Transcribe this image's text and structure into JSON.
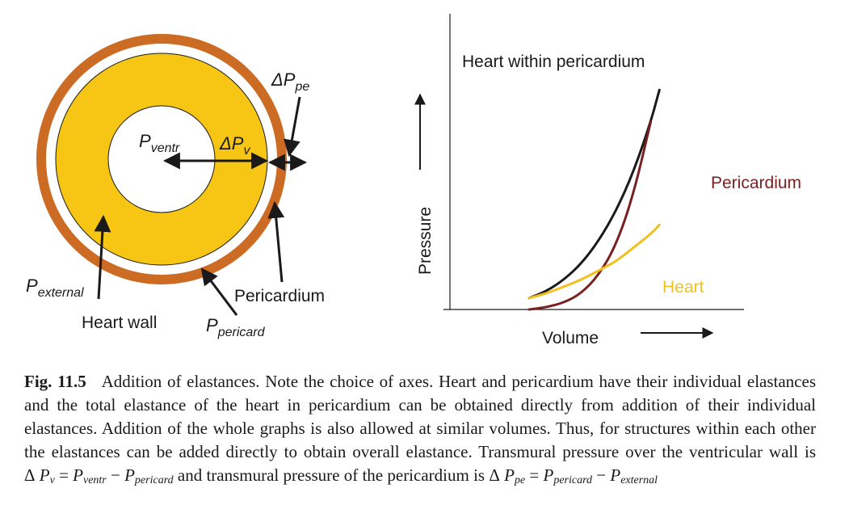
{
  "diagram": {
    "colors": {
      "pericardium_ring": "#cc6b24",
      "heart_wall": "#f7c514",
      "outline": "#1a1a1a"
    },
    "labels": {
      "p_ventr": {
        "main": "P",
        "sub": "ventr"
      },
      "delta_pv": {
        "main": "ΔP",
        "sub": "v"
      },
      "delta_ppe": {
        "main": "ΔP",
        "sub": "pe"
      },
      "p_external": {
        "main": "P",
        "sub": "external"
      },
      "heart_wall": "Heart wall",
      "pericardium": "Pericardium",
      "p_pericard": {
        "main": "P",
        "sub": "pericard"
      }
    }
  },
  "chart_data": {
    "type": "line",
    "title": "Heart within pericardium",
    "xlabel": "Volume",
    "ylabel": "Pressure",
    "x_range": [
      0,
      1
    ],
    "y_range": [
      0,
      1
    ],
    "series": [
      {
        "name": "Heart within pericardium",
        "color": "#1a1a1a",
        "points": [
          [
            0.0,
            0.05
          ],
          [
            0.1,
            0.08
          ],
          [
            0.2,
            0.13
          ],
          [
            0.3,
            0.2
          ],
          [
            0.4,
            0.3
          ],
          [
            0.5,
            0.43
          ],
          [
            0.6,
            0.6
          ],
          [
            0.7,
            0.82
          ],
          [
            0.75,
            0.96
          ]
        ]
      },
      {
        "name": "Pericardium",
        "color": "#7a1f1f",
        "points": [
          [
            0.0,
            0.0
          ],
          [
            0.1,
            0.01
          ],
          [
            0.2,
            0.03
          ],
          [
            0.3,
            0.07
          ],
          [
            0.4,
            0.15
          ],
          [
            0.5,
            0.28
          ],
          [
            0.6,
            0.5
          ],
          [
            0.7,
            0.82
          ]
        ]
      },
      {
        "name": "Heart",
        "color": "#f2c01f",
        "points": [
          [
            0.0,
            0.05
          ],
          [
            0.1,
            0.07
          ],
          [
            0.2,
            0.1
          ],
          [
            0.3,
            0.13
          ],
          [
            0.4,
            0.17
          ],
          [
            0.5,
            0.21
          ],
          [
            0.6,
            0.27
          ],
          [
            0.7,
            0.33
          ],
          [
            0.75,
            0.37
          ]
        ]
      }
    ],
    "legend_labels": {
      "pericardium": "Pericardium",
      "heart": "Heart"
    }
  },
  "caption": {
    "fig_label": "Fig. 11.5",
    "text": "Addition of elastances. Note the choice of axes. Heart and pericardium have their individual elastances and the total elastance of the heart in pericardium can be obtained directly from addition of their individual elastances. Addition of the whole graphs is also allowed at similar volumes. Thus, for structures within each other the elastances can be added directly to obtain overall elastance. Transmural pressure over the ventricular wall is",
    "eq1": {
      "lhs": "Δ",
      "lhs_var": "P",
      "lhs_sub": "v",
      "eq": "=",
      "a": "P",
      "a_sub": "ventr",
      "op": "−",
      "b": "P",
      "b_sub": "pericard"
    },
    "middle": "and transmural pressure of the pericardium is",
    "eq2": {
      "lhs": "Δ",
      "lhs_var": "P",
      "lhs_sub": "pe",
      "eq": "=",
      "a": "P",
      "a_sub": "pericard",
      "op": "−",
      "b": "P",
      "b_sub": "external"
    }
  }
}
